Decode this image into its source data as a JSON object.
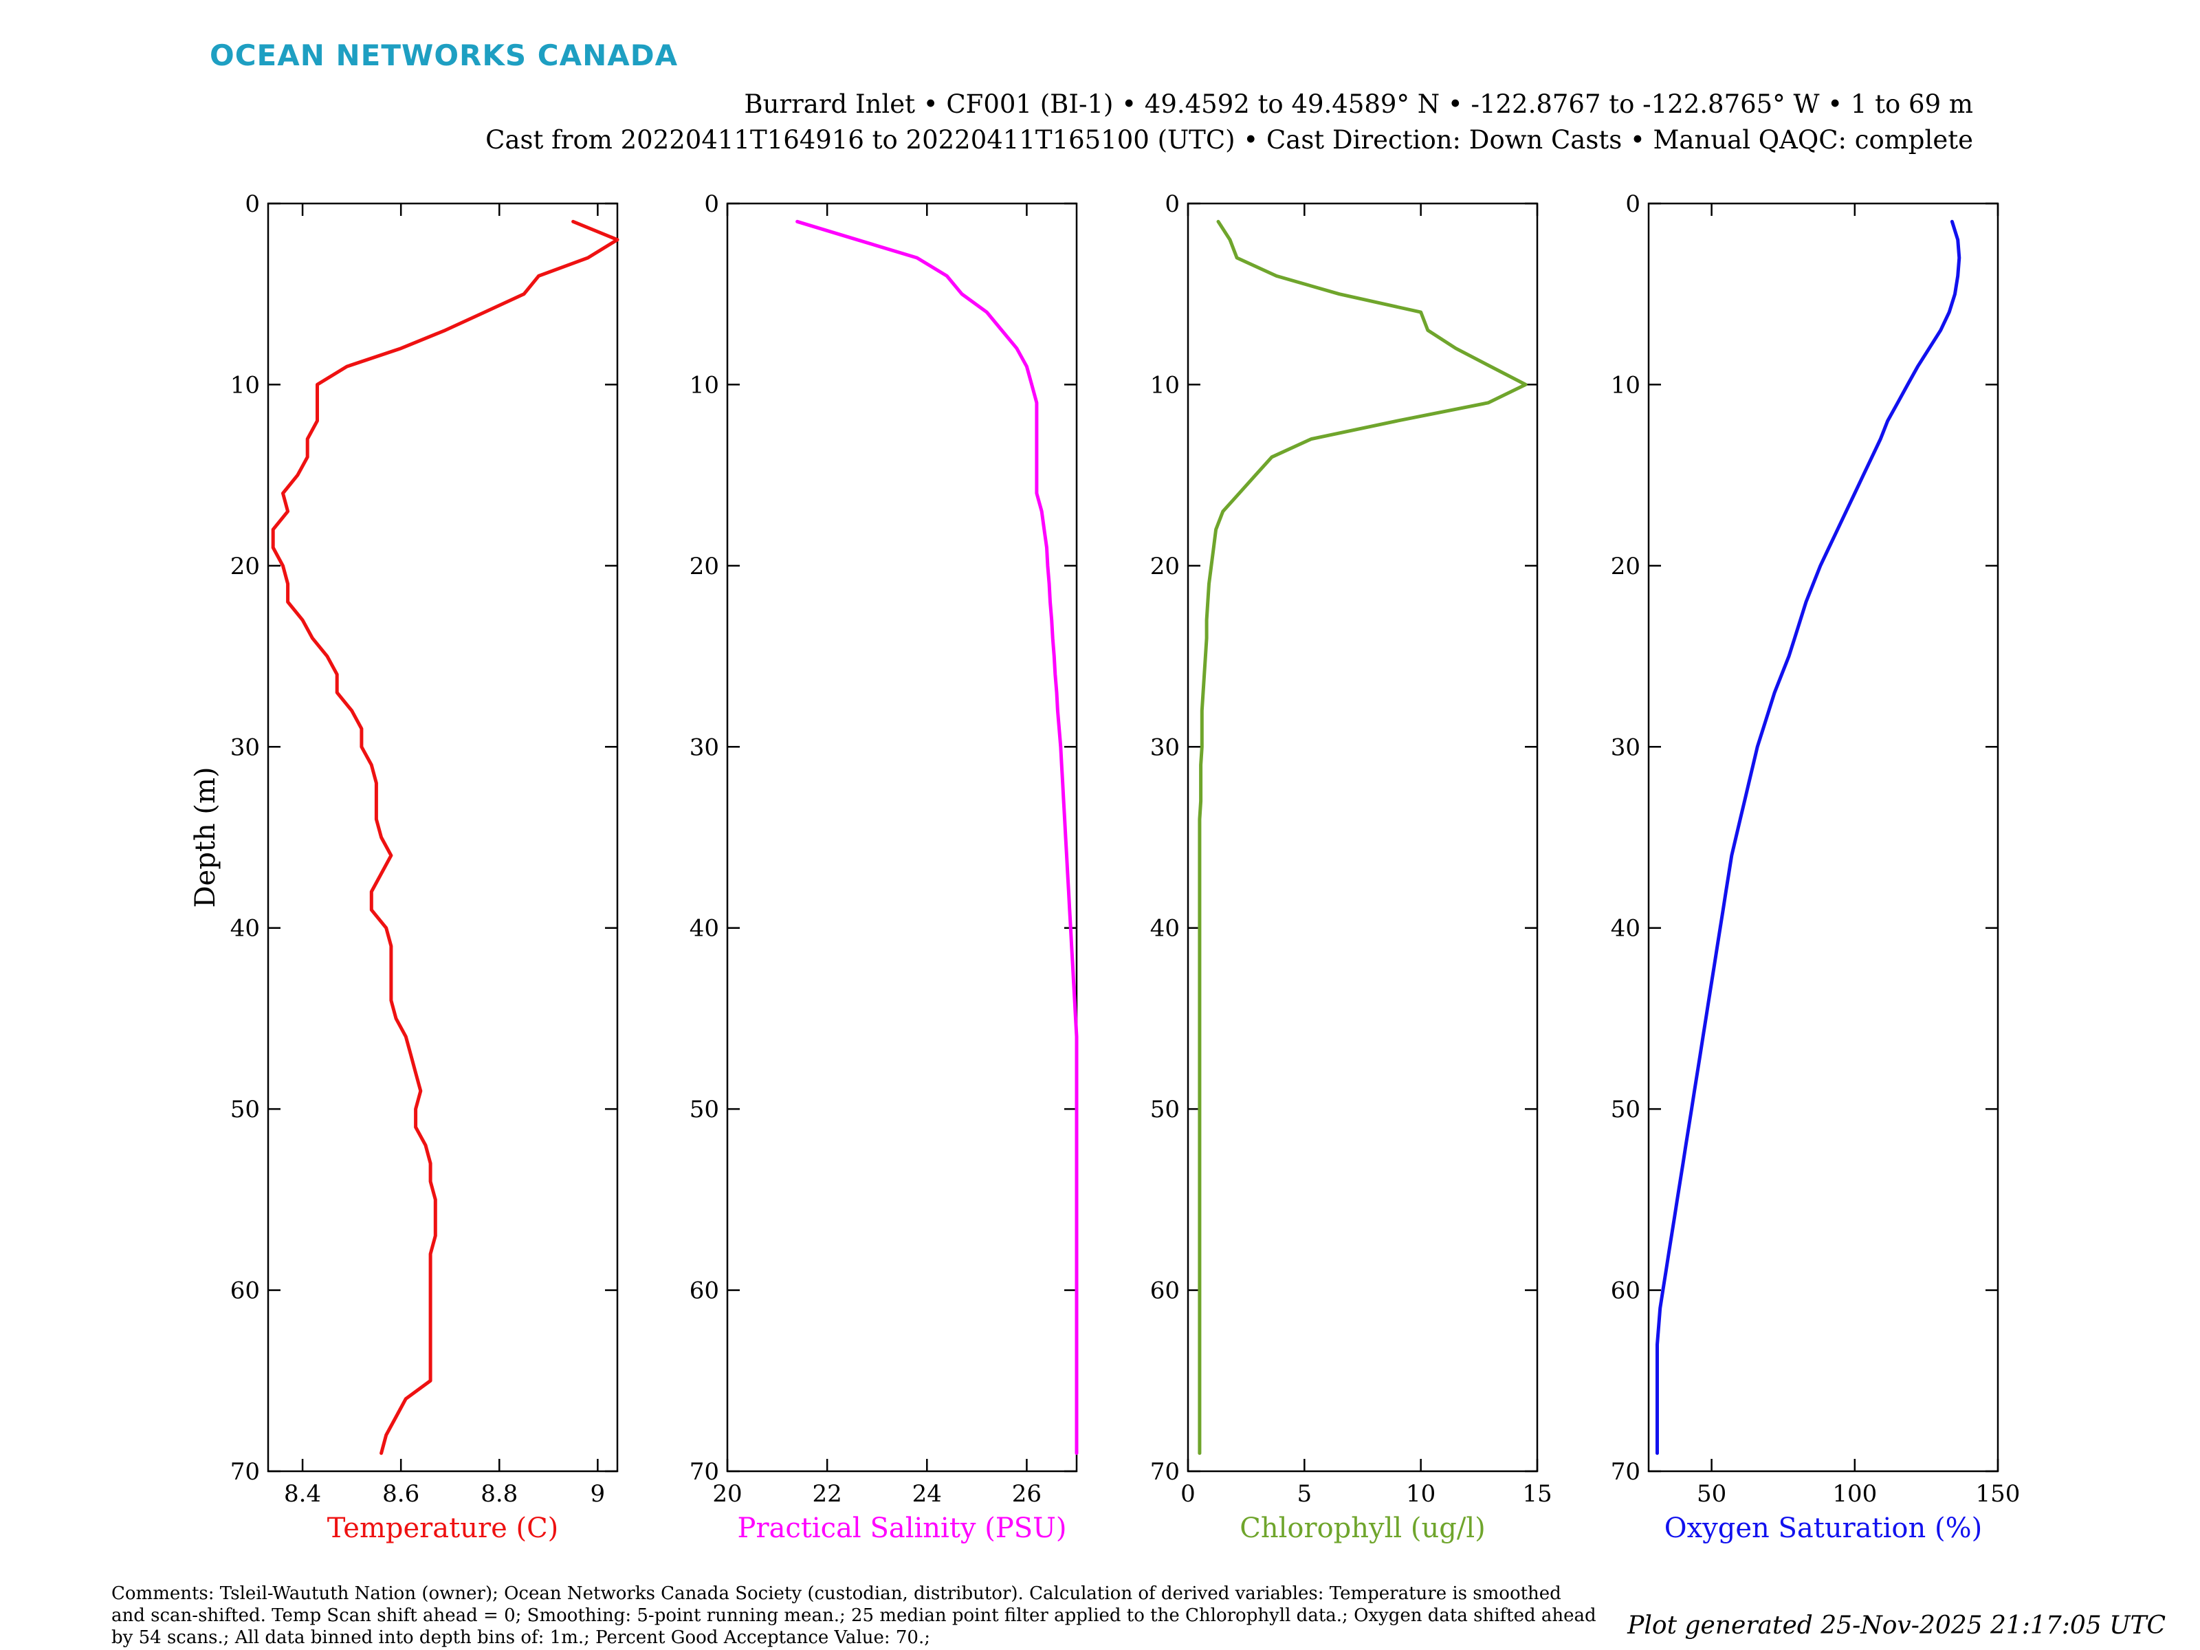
{
  "header": {
    "logo": "OCEAN NETWORKS CANADA",
    "title_line1": "Burrard Inlet • CF001 (BI-1) • 49.4592 to 49.4589° N • -122.8767 to -122.8765° W • 1 to 69 m",
    "title_line2": "Cast from 20220411T164916 to 20220411T165100 (UTC) • Cast Direction: Down Casts • Manual QAQC: complete"
  },
  "footer": {
    "comments": "Comments: Tsleil-Waututh Nation (owner); Ocean Networks Canada Society (custodian, distributor). Calculation of derived variables: Temperature is smoothed and scan-shifted. Temp Scan shift ahead = 0; Smoothing: 5-point running mean.; 25 median point filter applied to the Chlorophyll data.; Oxygen data shifted ahead by 54 scans.; All data binned into depth bins of: 1m.; Percent Good Acceptance Value: 70.;",
    "generated": "Plot generated 25-Nov-2025 21:17:05 UTC"
  },
  "chart_data": [
    {
      "type": "line",
      "ylabel": "Depth (m)",
      "xlabel": "Temperature (C)",
      "color": "#ee1111",
      "xlim": [
        8.33,
        9.04
      ],
      "ylim": [
        0,
        70
      ],
      "y_reversed": true,
      "xticks": [
        8.4,
        8.6,
        8.8,
        9
      ],
      "xtick_labels": [
        "8.4",
        "8.6",
        "8.8",
        "9"
      ],
      "yticks": [
        0,
        10,
        20,
        30,
        40,
        50,
        60,
        70
      ],
      "ytick_labels": [
        "0",
        "10",
        "20",
        "30",
        "40",
        "50",
        "60",
        "70"
      ],
      "x": [
        8.95,
        9.04,
        8.98,
        8.88,
        8.85,
        8.77,
        8.69,
        8.6,
        8.49,
        8.43,
        8.43,
        8.43,
        8.41,
        8.41,
        8.39,
        8.36,
        8.37,
        8.34,
        8.34,
        8.36,
        8.37,
        8.37,
        8.4,
        8.42,
        8.45,
        8.47,
        8.47,
        8.5,
        8.52,
        8.52,
        8.54,
        8.55,
        8.55,
        8.55,
        8.56,
        8.58,
        8.56,
        8.54,
        8.54,
        8.57,
        8.58,
        8.58,
        8.58,
        8.58,
        8.59,
        8.61,
        8.62,
        8.63,
        8.64,
        8.63,
        8.63,
        8.65,
        8.66,
        8.66,
        8.67,
        8.67,
        8.67,
        8.66,
        8.66,
        8.66,
        8.66,
        8.66,
        8.66,
        8.66,
        8.66,
        8.61,
        8.59,
        8.57,
        8.56
      ],
      "y": [
        1,
        2,
        3,
        4,
        5,
        6,
        7,
        8,
        9,
        10,
        11,
        12,
        13,
        14,
        15,
        16,
        17,
        18,
        19,
        20,
        21,
        22,
        23,
        24,
        25,
        26,
        27,
        28,
        29,
        30,
        31,
        32,
        33,
        34,
        35,
        36,
        37,
        38,
        39,
        40,
        41,
        42,
        43,
        44,
        45,
        46,
        47,
        48,
        49,
        50,
        51,
        52,
        53,
        54,
        55,
        56,
        57,
        58,
        59,
        60,
        61,
        62,
        63,
        64,
        65,
        66,
        67,
        68,
        69
      ]
    },
    {
      "type": "line",
      "ylabel": "",
      "xlabel": "Practical Salinity (PSU)",
      "color": "#ff00ff",
      "xlim": [
        20,
        27
      ],
      "ylim": [
        0,
        70
      ],
      "y_reversed": true,
      "xticks": [
        20,
        22,
        24,
        26
      ],
      "xtick_labels": [
        "20",
        "22",
        "24",
        "26"
      ],
      "yticks": [
        0,
        10,
        20,
        30,
        40,
        50,
        60,
        70
      ],
      "ytick_labels": [
        "0",
        "10",
        "20",
        "30",
        "40",
        "50",
        "60",
        "70"
      ],
      "x": [
        21.4,
        22.6,
        23.8,
        24.4,
        24.7,
        25.2,
        25.5,
        25.8,
        26.0,
        26.1,
        26.2,
        26.2,
        26.2,
        26.2,
        26.2,
        26.2,
        26.3,
        26.35,
        26.4,
        26.42,
        26.45,
        26.47,
        26.5,
        26.52,
        26.55,
        26.57,
        26.6,
        26.62,
        26.65,
        26.68,
        26.7,
        26.72,
        26.74,
        26.76,
        26.78,
        26.8,
        26.82,
        26.84,
        26.86,
        26.88,
        26.9,
        26.92,
        26.94,
        26.96,
        26.98,
        27.0,
        27.0,
        27.0,
        27.0,
        27.0,
        27.0,
        27.0,
        27.0,
        27.0,
        27.0,
        27.0,
        27.0,
        27.0,
        27.0,
        27.0,
        27.0,
        27.0,
        27.0,
        27.0,
        27.0,
        27.0,
        27.0,
        27.0,
        27.0
      ],
      "y": [
        1,
        2,
        3,
        4,
        5,
        6,
        7,
        8,
        9,
        10,
        11,
        12,
        13,
        14,
        15,
        16,
        17,
        18,
        19,
        20,
        21,
        22,
        23,
        24,
        25,
        26,
        27,
        28,
        29,
        30,
        31,
        32,
        33,
        34,
        35,
        36,
        37,
        38,
        39,
        40,
        41,
        42,
        43,
        44,
        45,
        46,
        47,
        48,
        49,
        50,
        51,
        52,
        53,
        54,
        55,
        56,
        57,
        58,
        59,
        60,
        61,
        62,
        63,
        64,
        65,
        66,
        67,
        68,
        69
      ]
    },
    {
      "type": "line",
      "ylabel": "",
      "xlabel": "Chlorophyll (ug/l)",
      "color": "#6fa52c",
      "xlim": [
        0,
        15
      ],
      "ylim": [
        0,
        70
      ],
      "y_reversed": true,
      "xticks": [
        0,
        5,
        10,
        15
      ],
      "xtick_labels": [
        "0",
        "5",
        "10",
        "15"
      ],
      "yticks": [
        0,
        10,
        20,
        30,
        40,
        50,
        60,
        70
      ],
      "ytick_labels": [
        "0",
        "10",
        "20",
        "30",
        "40",
        "50",
        "60",
        "70"
      ],
      "x": [
        1.3,
        1.8,
        2.1,
        3.8,
        6.5,
        10.0,
        10.3,
        11.5,
        13.0,
        14.5,
        12.9,
        9.0,
        5.3,
        3.6,
        2.9,
        2.2,
        1.5,
        1.2,
        1.1,
        1.0,
        0.9,
        0.85,
        0.8,
        0.8,
        0.75,
        0.7,
        0.65,
        0.6,
        0.6,
        0.6,
        0.55,
        0.55,
        0.55,
        0.5,
        0.5,
        0.5,
        0.5,
        0.5,
        0.5,
        0.5,
        0.5,
        0.5,
        0.5,
        0.5,
        0.5,
        0.5,
        0.5,
        0.5,
        0.5,
        0.5,
        0.5,
        0.5,
        0.5,
        0.5,
        0.5,
        0.5,
        0.5,
        0.5,
        0.5,
        0.5,
        0.5,
        0.5,
        0.5,
        0.5,
        0.5,
        0.5,
        0.5,
        0.5,
        0.5
      ],
      "y": [
        1,
        2,
        3,
        4,
        5,
        6,
        7,
        8,
        9,
        10,
        11,
        12,
        13,
        14,
        15,
        16,
        17,
        18,
        19,
        20,
        21,
        22,
        23,
        24,
        25,
        26,
        27,
        28,
        29,
        30,
        31,
        32,
        33,
        34,
        35,
        36,
        37,
        38,
        39,
        40,
        41,
        42,
        43,
        44,
        45,
        46,
        47,
        48,
        49,
        50,
        51,
        52,
        53,
        54,
        55,
        56,
        57,
        58,
        59,
        60,
        61,
        62,
        63,
        64,
        65,
        66,
        67,
        68,
        69
      ]
    },
    {
      "type": "line",
      "ylabel": "",
      "xlabel": "Oxygen Saturation (%)",
      "color": "#1111ee",
      "xlim": [
        28,
        150
      ],
      "ylim": [
        0,
        70
      ],
      "y_reversed": true,
      "xticks": [
        50,
        100,
        150
      ],
      "xtick_labels": [
        "50",
        "100",
        "150"
      ],
      "yticks": [
        0,
        10,
        20,
        30,
        40,
        50,
        60,
        70
      ],
      "ytick_labels": [
        "0",
        "10",
        "20",
        "30",
        "40",
        "50",
        "60",
        "70"
      ],
      "x": [
        134,
        136,
        136.5,
        136,
        135,
        133,
        130,
        126,
        122,
        118.5,
        115,
        111.5,
        109,
        106,
        103,
        100,
        97,
        94,
        91,
        88,
        85.5,
        83,
        81,
        79,
        77,
        74.5,
        72,
        70,
        68,
        66,
        64.5,
        63,
        61.5,
        60,
        58.5,
        57,
        56,
        55,
        54,
        53,
        52,
        51,
        50,
        49,
        48,
        47,
        46,
        45,
        44,
        43,
        42,
        41,
        40,
        39,
        38,
        37,
        36,
        35,
        34,
        33,
        32,
        31.5,
        31,
        31,
        31,
        31,
        31,
        31,
        31
      ],
      "y": [
        1,
        2,
        3,
        4,
        5,
        6,
        7,
        8,
        9,
        10,
        11,
        12,
        13,
        14,
        15,
        16,
        17,
        18,
        19,
        20,
        21,
        22,
        23,
        24,
        25,
        26,
        27,
        28,
        29,
        30,
        31,
        32,
        33,
        34,
        35,
        36,
        37,
        38,
        39,
        40,
        41,
        42,
        43,
        44,
        45,
        46,
        47,
        48,
        49,
        50,
        51,
        52,
        53,
        54,
        55,
        56,
        57,
        58,
        59,
        60,
        61,
        62,
        63,
        64,
        65,
        66,
        67,
        68,
        69
      ]
    }
  ]
}
